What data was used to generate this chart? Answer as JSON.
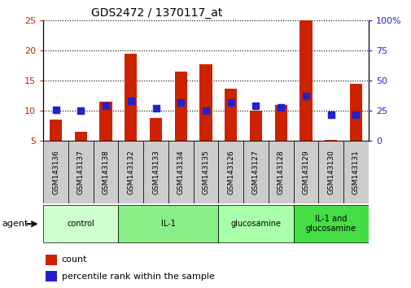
{
  "title": "GDS2472 / 1370117_at",
  "samples": [
    "GSM143136",
    "GSM143137",
    "GSM143138",
    "GSM143132",
    "GSM143133",
    "GSM143134",
    "GSM143135",
    "GSM143126",
    "GSM143127",
    "GSM143128",
    "GSM143129",
    "GSM143130",
    "GSM143131"
  ],
  "counts": [
    8.5,
    6.5,
    11.5,
    19.5,
    8.8,
    16.5,
    17.7,
    13.7,
    10.0,
    11.0,
    25.0,
    5.2,
    14.5
  ],
  "percentiles": [
    26,
    25,
    29,
    33,
    27,
    32,
    25,
    32,
    29,
    28,
    37,
    22,
    22
  ],
  "groups": [
    {
      "label": "control",
      "start": 0,
      "end": 3,
      "color": "#ccffcc"
    },
    {
      "label": "IL-1",
      "start": 3,
      "end": 7,
      "color": "#88ee88"
    },
    {
      "label": "glucosamine",
      "start": 7,
      "end": 10,
      "color": "#aaffaa"
    },
    {
      "label": "IL-1 and\nglucosamine",
      "start": 10,
      "end": 13,
      "color": "#44dd44"
    }
  ],
  "ylim_left": [
    5,
    25
  ],
  "ylim_right": [
    0,
    100
  ],
  "yticks_left": [
    5,
    10,
    15,
    20,
    25
  ],
  "yticks_right": [
    0,
    25,
    50,
    75,
    100
  ],
  "bar_color": "#cc2200",
  "dot_color": "#2222cc",
  "bar_width": 0.5,
  "dot_size": 28,
  "background_plot": "#ffffff",
  "xlabel_box_color": "#cccccc",
  "agent_label": "agent",
  "legend_count_label": "count",
  "legend_pct_label": "percentile rank within the sample"
}
